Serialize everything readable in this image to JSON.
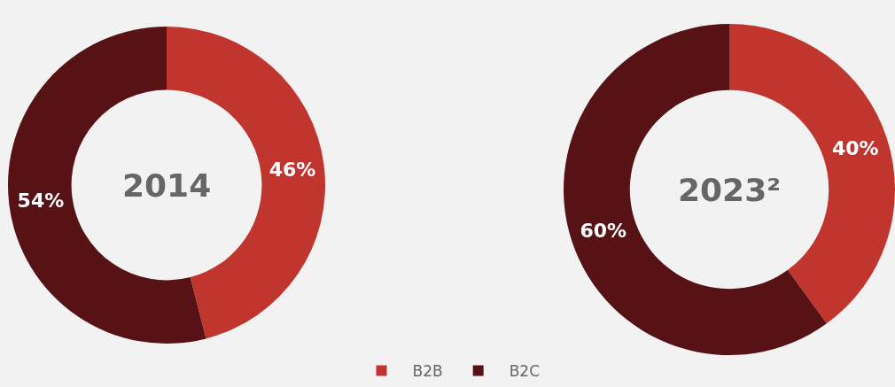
{
  "chart_data": [
    {
      "type": "donut",
      "title": "2014",
      "categories": [
        "B2B",
        "B2C"
      ],
      "values": [
        46,
        54
      ],
      "value_labels": [
        "46%",
        "54%"
      ],
      "colors": [
        "#c1352f",
        "#561214"
      ],
      "legend": "bottom"
    },
    {
      "type": "donut",
      "title": "2023²",
      "categories": [
        null,
        null
      ],
      "values": [
        40,
        60
      ],
      "value_labels": [
        "40%",
        "60%"
      ],
      "colors": [
        "#c1352f",
        "#561214"
      ]
    }
  ]
}
